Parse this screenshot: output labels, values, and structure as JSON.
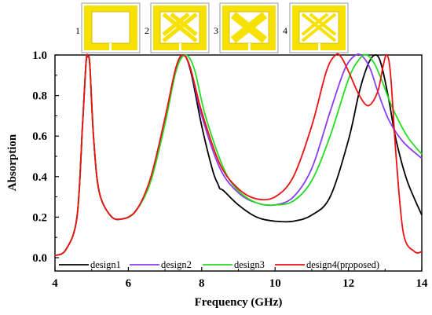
{
  "chart_data": {
    "type": "line",
    "xlabel": "Frequency (GHz)",
    "ylabel": "Absorption",
    "xlim": [
      4,
      14
    ],
    "ylim": [
      0,
      1.0
    ],
    "x_ticks": [
      "4",
      "6",
      "8",
      "10",
      "12",
      "14"
    ],
    "y_ticks": [
      "0.0",
      "0.2",
      "0.4",
      "0.6",
      "0.8",
      "1.0"
    ],
    "grid": false,
    "legend_position": "bottom inside",
    "insets": [
      {
        "label": "1",
        "pattern": "square-ring"
      },
      {
        "label": "2",
        "pattern": "ring-with-double-cross"
      },
      {
        "label": "3",
        "pattern": "ring-with-cross"
      },
      {
        "label": "4",
        "pattern": "ring-with-double-cross-split"
      }
    ],
    "series": [
      {
        "name": "design1",
        "color": "#000000",
        "x": [
          4.0,
          4.3,
          4.6,
          4.75,
          4.85,
          4.9,
          4.95,
          5.05,
          5.2,
          5.5,
          5.8,
          6.2,
          6.6,
          7.0,
          7.3,
          7.5,
          7.7,
          8.0,
          8.3,
          8.45,
          8.5,
          8.6,
          9.0,
          9.5,
          10.0,
          10.5,
          11.0,
          11.5,
          12.0,
          12.3,
          12.55,
          12.75,
          12.9,
          13.1,
          13.3,
          13.6,
          14.0
        ],
        "y": [
          0.01,
          0.04,
          0.2,
          0.65,
          0.97,
          0.99,
          0.95,
          0.6,
          0.33,
          0.21,
          0.19,
          0.23,
          0.38,
          0.68,
          0.93,
          1.0,
          0.92,
          0.65,
          0.43,
          0.36,
          0.34,
          0.33,
          0.26,
          0.2,
          0.18,
          0.18,
          0.21,
          0.3,
          0.58,
          0.82,
          0.96,
          1.0,
          0.95,
          0.78,
          0.58,
          0.38,
          0.21
        ]
      },
      {
        "name": "design2",
        "color": "#8a3df2",
        "x": [
          4.0,
          4.3,
          4.6,
          4.75,
          4.85,
          4.9,
          4.95,
          5.05,
          5.2,
          5.5,
          5.8,
          6.2,
          6.6,
          7.0,
          7.3,
          7.5,
          7.7,
          8.0,
          8.5,
          9.0,
          9.5,
          10.0,
          10.5,
          11.0,
          11.5,
          11.9,
          12.2,
          12.4,
          12.6,
          12.8,
          13.1,
          13.5,
          14.0
        ],
        "y": [
          0.01,
          0.04,
          0.2,
          0.65,
          0.97,
          0.99,
          0.95,
          0.6,
          0.33,
          0.21,
          0.19,
          0.23,
          0.38,
          0.68,
          0.93,
          1.0,
          0.93,
          0.7,
          0.44,
          0.32,
          0.27,
          0.26,
          0.3,
          0.44,
          0.72,
          0.93,
          1.0,
          0.99,
          0.93,
          0.82,
          0.68,
          0.57,
          0.49
        ]
      },
      {
        "name": "design3",
        "color": "#22dd22",
        "x": [
          4.0,
          4.3,
          4.6,
          4.75,
          4.85,
          4.9,
          4.95,
          5.05,
          5.2,
          5.5,
          5.8,
          6.2,
          6.6,
          7.0,
          7.3,
          7.55,
          7.8,
          8.1,
          8.6,
          9.0,
          9.5,
          10.0,
          10.5,
          11.0,
          11.5,
          12.0,
          12.3,
          12.5,
          12.7,
          12.9,
          13.2,
          13.6,
          14.0
        ],
        "y": [
          0.01,
          0.04,
          0.2,
          0.65,
          0.97,
          0.99,
          0.95,
          0.6,
          0.33,
          0.21,
          0.19,
          0.23,
          0.37,
          0.66,
          0.92,
          1.0,
          0.93,
          0.7,
          0.44,
          0.33,
          0.27,
          0.26,
          0.28,
          0.38,
          0.6,
          0.88,
          0.98,
          1.0,
          0.96,
          0.88,
          0.74,
          0.6,
          0.51
        ]
      },
      {
        "name": "design4(proposed)",
        "color": "#ee1111",
        "x": [
          4.0,
          4.3,
          4.6,
          4.75,
          4.85,
          4.9,
          4.95,
          5.05,
          5.2,
          5.5,
          5.8,
          6.2,
          6.6,
          7.0,
          7.3,
          7.5,
          7.7,
          8.0,
          8.5,
          9.0,
          9.5,
          10.0,
          10.5,
          11.0,
          11.4,
          11.65,
          11.8,
          12.0,
          12.3,
          12.55,
          12.8,
          12.95,
          13.05,
          13.15,
          13.3,
          13.5,
          13.8,
          14.0
        ],
        "y": [
          0.01,
          0.04,
          0.2,
          0.65,
          0.97,
          0.99,
          0.95,
          0.6,
          0.33,
          0.21,
          0.19,
          0.23,
          0.39,
          0.69,
          0.94,
          1.0,
          0.93,
          0.72,
          0.46,
          0.34,
          0.29,
          0.3,
          0.4,
          0.65,
          0.92,
          1.0,
          0.99,
          0.92,
          0.8,
          0.75,
          0.82,
          0.95,
          1.0,
          0.9,
          0.5,
          0.12,
          0.03,
          0.03
        ]
      }
    ]
  }
}
